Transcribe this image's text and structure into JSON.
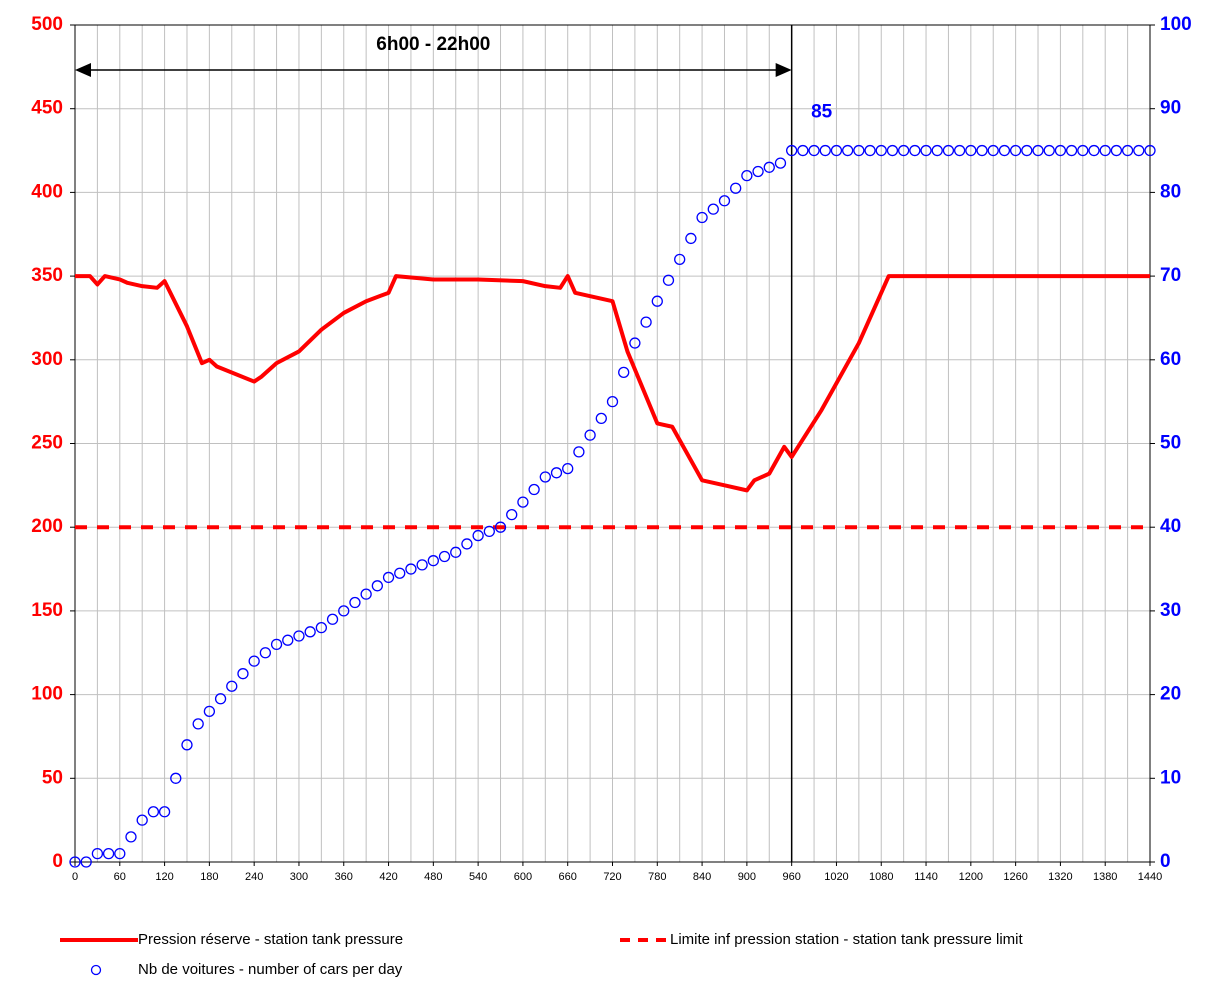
{
  "chart_data": {
    "type": "line",
    "xlim": [
      0,
      1440
    ],
    "xticks": [
      0,
      60,
      120,
      180,
      240,
      300,
      360,
      420,
      480,
      540,
      600,
      660,
      720,
      780,
      840,
      900,
      960,
      1020,
      1080,
      1140,
      1200,
      1260,
      1320,
      1380,
      1440
    ],
    "xminorticks": [
      30,
      90,
      150,
      210,
      270,
      330,
      390,
      450,
      510,
      570,
      630,
      690,
      750,
      810,
      870,
      930,
      990,
      1050,
      1110,
      1170,
      1230,
      1290,
      1350,
      1410
    ],
    "ylim": [
      0,
      500
    ],
    "yticks": [
      0,
      50,
      100,
      150,
      200,
      250,
      300,
      350,
      400,
      450,
      500
    ],
    "y2lim": [
      0,
      100
    ],
    "y2ticks": [
      0,
      10,
      20,
      30,
      40,
      50,
      60,
      70,
      80,
      90,
      100
    ],
    "grid": true,
    "vline": 960,
    "annotations": [
      {
        "text": "6h00 - 22h00",
        "x_start": 0,
        "x_end": 960
      },
      {
        "text": "85",
        "x": 960,
        "y2": 85
      }
    ],
    "series": [
      {
        "name": "Pression réserve - station tank pressure",
        "color": "#ff0000",
        "style": "line",
        "x": [
          0,
          20,
          30,
          40,
          60,
          70,
          90,
          110,
          120,
          150,
          170,
          180,
          190,
          240,
          250,
          270,
          300,
          330,
          360,
          390,
          420,
          430,
          480,
          540,
          600,
          630,
          650,
          660,
          670,
          720,
          740,
          780,
          800,
          840,
          870,
          900,
          910,
          930,
          950,
          960,
          1000,
          1050,
          1090,
          1440
        ],
        "values": [
          350,
          350,
          345,
          350,
          348,
          346,
          344,
          343,
          347,
          320,
          298,
          300,
          296,
          287,
          290,
          298,
          305,
          318,
          328,
          335,
          340,
          350,
          348,
          348,
          347,
          344,
          343,
          350,
          340,
          335,
          305,
          262,
          260,
          228,
          225,
          222,
          228,
          232,
          248,
          242,
          270,
          310,
          350,
          350
        ]
      },
      {
        "name": "Limite inf pression station - station tank pressure limit",
        "color": "#ff0000",
        "style": "dashed",
        "x": [
          0,
          1440
        ],
        "values": [
          200,
          200
        ]
      },
      {
        "name": "Nb de voitures - number of cars per day",
        "color": "#0000ff",
        "style": "markers",
        "axis": "y2",
        "x": [
          0,
          15,
          30,
          45,
          60,
          75,
          90,
          105,
          120,
          135,
          150,
          165,
          180,
          195,
          210,
          225,
          240,
          255,
          270,
          285,
          300,
          315,
          330,
          345,
          360,
          375,
          390,
          405,
          420,
          435,
          450,
          465,
          480,
          495,
          510,
          525,
          540,
          555,
          570,
          585,
          600,
          615,
          630,
          645,
          660,
          675,
          690,
          705,
          720,
          735,
          750,
          765,
          780,
          795,
          810,
          825,
          840,
          855,
          870,
          885,
          900,
          915,
          930,
          945,
          960,
          975,
          990,
          1005,
          1020,
          1035,
          1050,
          1065,
          1080,
          1095,
          1110,
          1125,
          1140,
          1155,
          1170,
          1185,
          1200,
          1215,
          1230,
          1245,
          1260,
          1275,
          1290,
          1305,
          1320,
          1335,
          1350,
          1365,
          1380,
          1395,
          1410,
          1425,
          1440
        ],
        "values": [
          0,
          0,
          1,
          1,
          1,
          3,
          5,
          6,
          6,
          10,
          14,
          16.5,
          18,
          19.5,
          21,
          22.5,
          24,
          25,
          26,
          26.5,
          27,
          27.5,
          28,
          29,
          30,
          31,
          32,
          33,
          34,
          34.5,
          35,
          35.5,
          36,
          36.5,
          37,
          38,
          39,
          39.5,
          40,
          41.5,
          43,
          44.5,
          46,
          46.5,
          47,
          49,
          51,
          53,
          55,
          58.5,
          62,
          64.5,
          67,
          69.5,
          72,
          74.5,
          77,
          78,
          79,
          80.5,
          82,
          82.5,
          83,
          83.5,
          85,
          85,
          85,
          85,
          85,
          85,
          85,
          85,
          85,
          85,
          85,
          85,
          85,
          85,
          85,
          85,
          85,
          85,
          85,
          85,
          85,
          85,
          85,
          85,
          85,
          85,
          85,
          85,
          85,
          85,
          85,
          85,
          85
        ]
      }
    ]
  }
}
